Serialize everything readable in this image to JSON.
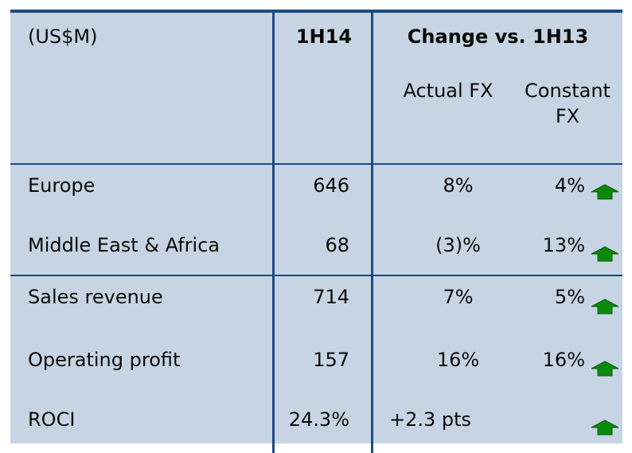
{
  "table": {
    "header": {
      "label": "(US$M)",
      "period": "1H14",
      "change": "Change vs. 1H13",
      "actual": "Actual FX",
      "constant": "Constant FX"
    },
    "rows": [
      [
        "Europe",
        "646",
        "8%",
        "4%"
      ],
      [
        "Middle East & Africa",
        "68",
        "(3)%",
        "13%"
      ],
      [
        "Sales revenue",
        "714",
        "7%",
        "5%"
      ],
      [
        "Operating profit",
        "157",
        "16%",
        "16%"
      ],
      [
        "ROCI",
        "24.3%",
        "+2.3 pts"
      ]
    ]
  }
}
